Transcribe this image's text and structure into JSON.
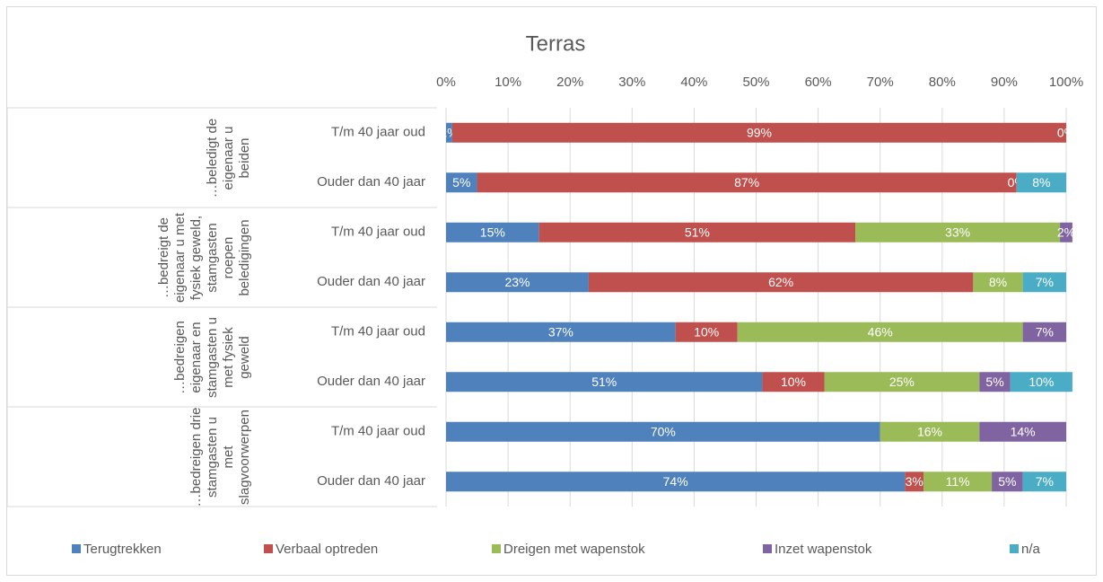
{
  "chart_data": {
    "type": "stacked-barh",
    "title": "Terras",
    "groups": [
      "…beledigt de eigenaar u beiden",
      "…bedreigt de eigenaar u met fysiek geweld, stamgasten roepen beledigingen",
      "…bedreigen eigenaar en stamgasten u met fysiek geweld",
      "…bedreigen drie stamgasten u met slagvoorwerpen"
    ],
    "categories": [
      "T/m 40 jaar oud",
      "Ouder dan 40 jaar",
      "T/m 40 jaar oud",
      "Ouder dan 40 jaar",
      "T/m 40 jaar oud",
      "Ouder dan 40 jaar",
      "T/m 40 jaar oud",
      "Ouder dan 40 jaar"
    ],
    "xlim": [
      0,
      100
    ],
    "xticks": [
      {
        "value": 0,
        "label": "0%"
      },
      {
        "value": 10,
        "label": "10%"
      },
      {
        "value": 20,
        "label": "20%"
      },
      {
        "value": 30,
        "label": "30%"
      },
      {
        "value": 40,
        "label": "40%"
      },
      {
        "value": 50,
        "label": "50%"
      },
      {
        "value": 60,
        "label": "60%"
      },
      {
        "value": 70,
        "label": "70%"
      },
      {
        "value": 80,
        "label": "80%"
      },
      {
        "value": 90,
        "label": "90%"
      },
      {
        "value": 100,
        "label": "100%"
      }
    ],
    "grid": true,
    "legend": "bottom",
    "series": [
      {
        "name": "Terugtrekken",
        "color": "#4f81bd",
        "values": [
          1,
          5,
          15,
          23,
          37,
          51,
          70,
          74
        ],
        "value_labels": [
          "1%",
          "5%",
          "15%",
          "23%",
          "37%",
          "51%",
          "70%",
          "74%"
        ]
      },
      {
        "name": "Verbaal optreden",
        "color": "#c0504d",
        "values": [
          99,
          87,
          51,
          62,
          10,
          10,
          null,
          3
        ],
        "value_labels": [
          "99%",
          "87%",
          "51%",
          "62%",
          "10%",
          "10%",
          null,
          "3%"
        ]
      },
      {
        "name": "Dreigen met wapenstok",
        "color": "#9bbb59",
        "values": [
          0,
          0,
          33,
          8,
          46,
          25,
          16,
          11
        ],
        "value_labels": [
          "0%",
          "0%",
          "33%",
          "8%",
          "46%",
          "25%",
          "16%",
          "11%"
        ]
      },
      {
        "name": "Inzet wapenstok",
        "color": "#8064a2",
        "values": [
          null,
          null,
          2,
          null,
          7,
          5,
          14,
          5
        ],
        "value_labels": [
          null,
          null,
          "2%",
          null,
          "7%",
          "5%",
          "14%",
          "5%"
        ]
      },
      {
        "name": "n/a",
        "color": "#4bacc6",
        "values": [
          null,
          8,
          null,
          7,
          null,
          10,
          null,
          7
        ],
        "value_labels": [
          null,
          "8%",
          null,
          "7%",
          null,
          "10%",
          null,
          "7%"
        ]
      }
    ]
  }
}
